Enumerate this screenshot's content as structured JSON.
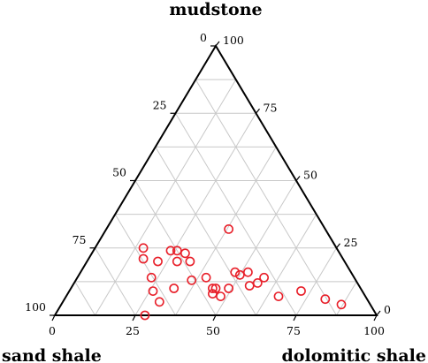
{
  "chart_data": {
    "type": "ternary-scatter",
    "title": "",
    "apex_labels": {
      "top": "mudstone",
      "left": "sand shale",
      "right": "dolomitic shale"
    },
    "ticks": [
      "0",
      "25",
      "50",
      "75",
      "100"
    ],
    "grid": true,
    "marker_color": "#e8202a",
    "series": [
      {
        "marker": "open-circle",
        "points": [
          {
            "sand_shale": 72,
            "dolomitic_shale": 28,
            "mudstone": 0
          },
          {
            "sand_shale": 65,
            "dolomitic_shale": 30,
            "mudstone": 5
          },
          {
            "sand_shale": 65,
            "dolomitic_shale": 26,
            "mudstone": 9
          },
          {
            "sand_shale": 58,
            "dolomitic_shale": 32,
            "mudstone": 10
          },
          {
            "sand_shale": 63,
            "dolomitic_shale": 23,
            "mudstone": 14
          },
          {
            "sand_shale": 51,
            "dolomitic_shale": 36,
            "mudstone": 13
          },
          {
            "sand_shale": 62,
            "dolomitic_shale": 17,
            "mudstone": 21
          },
          {
            "sand_shale": 60,
            "dolomitic_shale": 15,
            "mudstone": 25
          },
          {
            "sand_shale": 58,
            "dolomitic_shale": 22,
            "mudstone": 20
          },
          {
            "sand_shale": 52,
            "dolomitic_shale": 24,
            "mudstone": 24
          },
          {
            "sand_shale": 50,
            "dolomitic_shale": 26,
            "mudstone": 24
          },
          {
            "sand_shale": 52,
            "dolomitic_shale": 28,
            "mudstone": 20
          },
          {
            "sand_shale": 48,
            "dolomitic_shale": 32,
            "mudstone": 20
          },
          {
            "sand_shale": 48,
            "dolomitic_shale": 29,
            "mudstone": 23
          },
          {
            "sand_shale": 46,
            "dolomitic_shale": 40,
            "mudstone": 14
          },
          {
            "sand_shale": 46,
            "dolomitic_shale": 44,
            "mudstone": 10
          },
          {
            "sand_shale": 45,
            "dolomitic_shale": 45,
            "mudstone": 10
          },
          {
            "sand_shale": 47,
            "dolomitic_shale": 45,
            "mudstone": 8
          },
          {
            "sand_shale": 45,
            "dolomitic_shale": 48,
            "mudstone": 7
          },
          {
            "sand_shale": 41,
            "dolomitic_shale": 49,
            "mudstone": 10
          },
          {
            "sand_shale": 35,
            "dolomitic_shale": 50,
            "mudstone": 15
          },
          {
            "sand_shale": 34,
            "dolomitic_shale": 55,
            "mudstone": 11
          },
          {
            "sand_shale": 36,
            "dolomitic_shale": 48,
            "mudstone": 16
          },
          {
            "sand_shale": 32,
            "dolomitic_shale": 52,
            "mudstone": 16
          },
          {
            "sand_shale": 28,
            "dolomitic_shale": 58,
            "mudstone": 14
          },
          {
            "sand_shale": 27,
            "dolomitic_shale": 66,
            "mudstone": 7
          },
          {
            "sand_shale": 19,
            "dolomitic_shale": 72,
            "mudstone": 9
          },
          {
            "sand_shale": 13,
            "dolomitic_shale": 81,
            "mudstone": 6
          },
          {
            "sand_shale": 9,
            "dolomitic_shale": 87,
            "mudstone": 4
          },
          {
            "sand_shale": 31,
            "dolomitic_shale": 57,
            "mudstone": 12
          },
          {
            "sand_shale": 30,
            "dolomitic_shale": 38,
            "mudstone": 32
          }
        ]
      }
    ]
  }
}
